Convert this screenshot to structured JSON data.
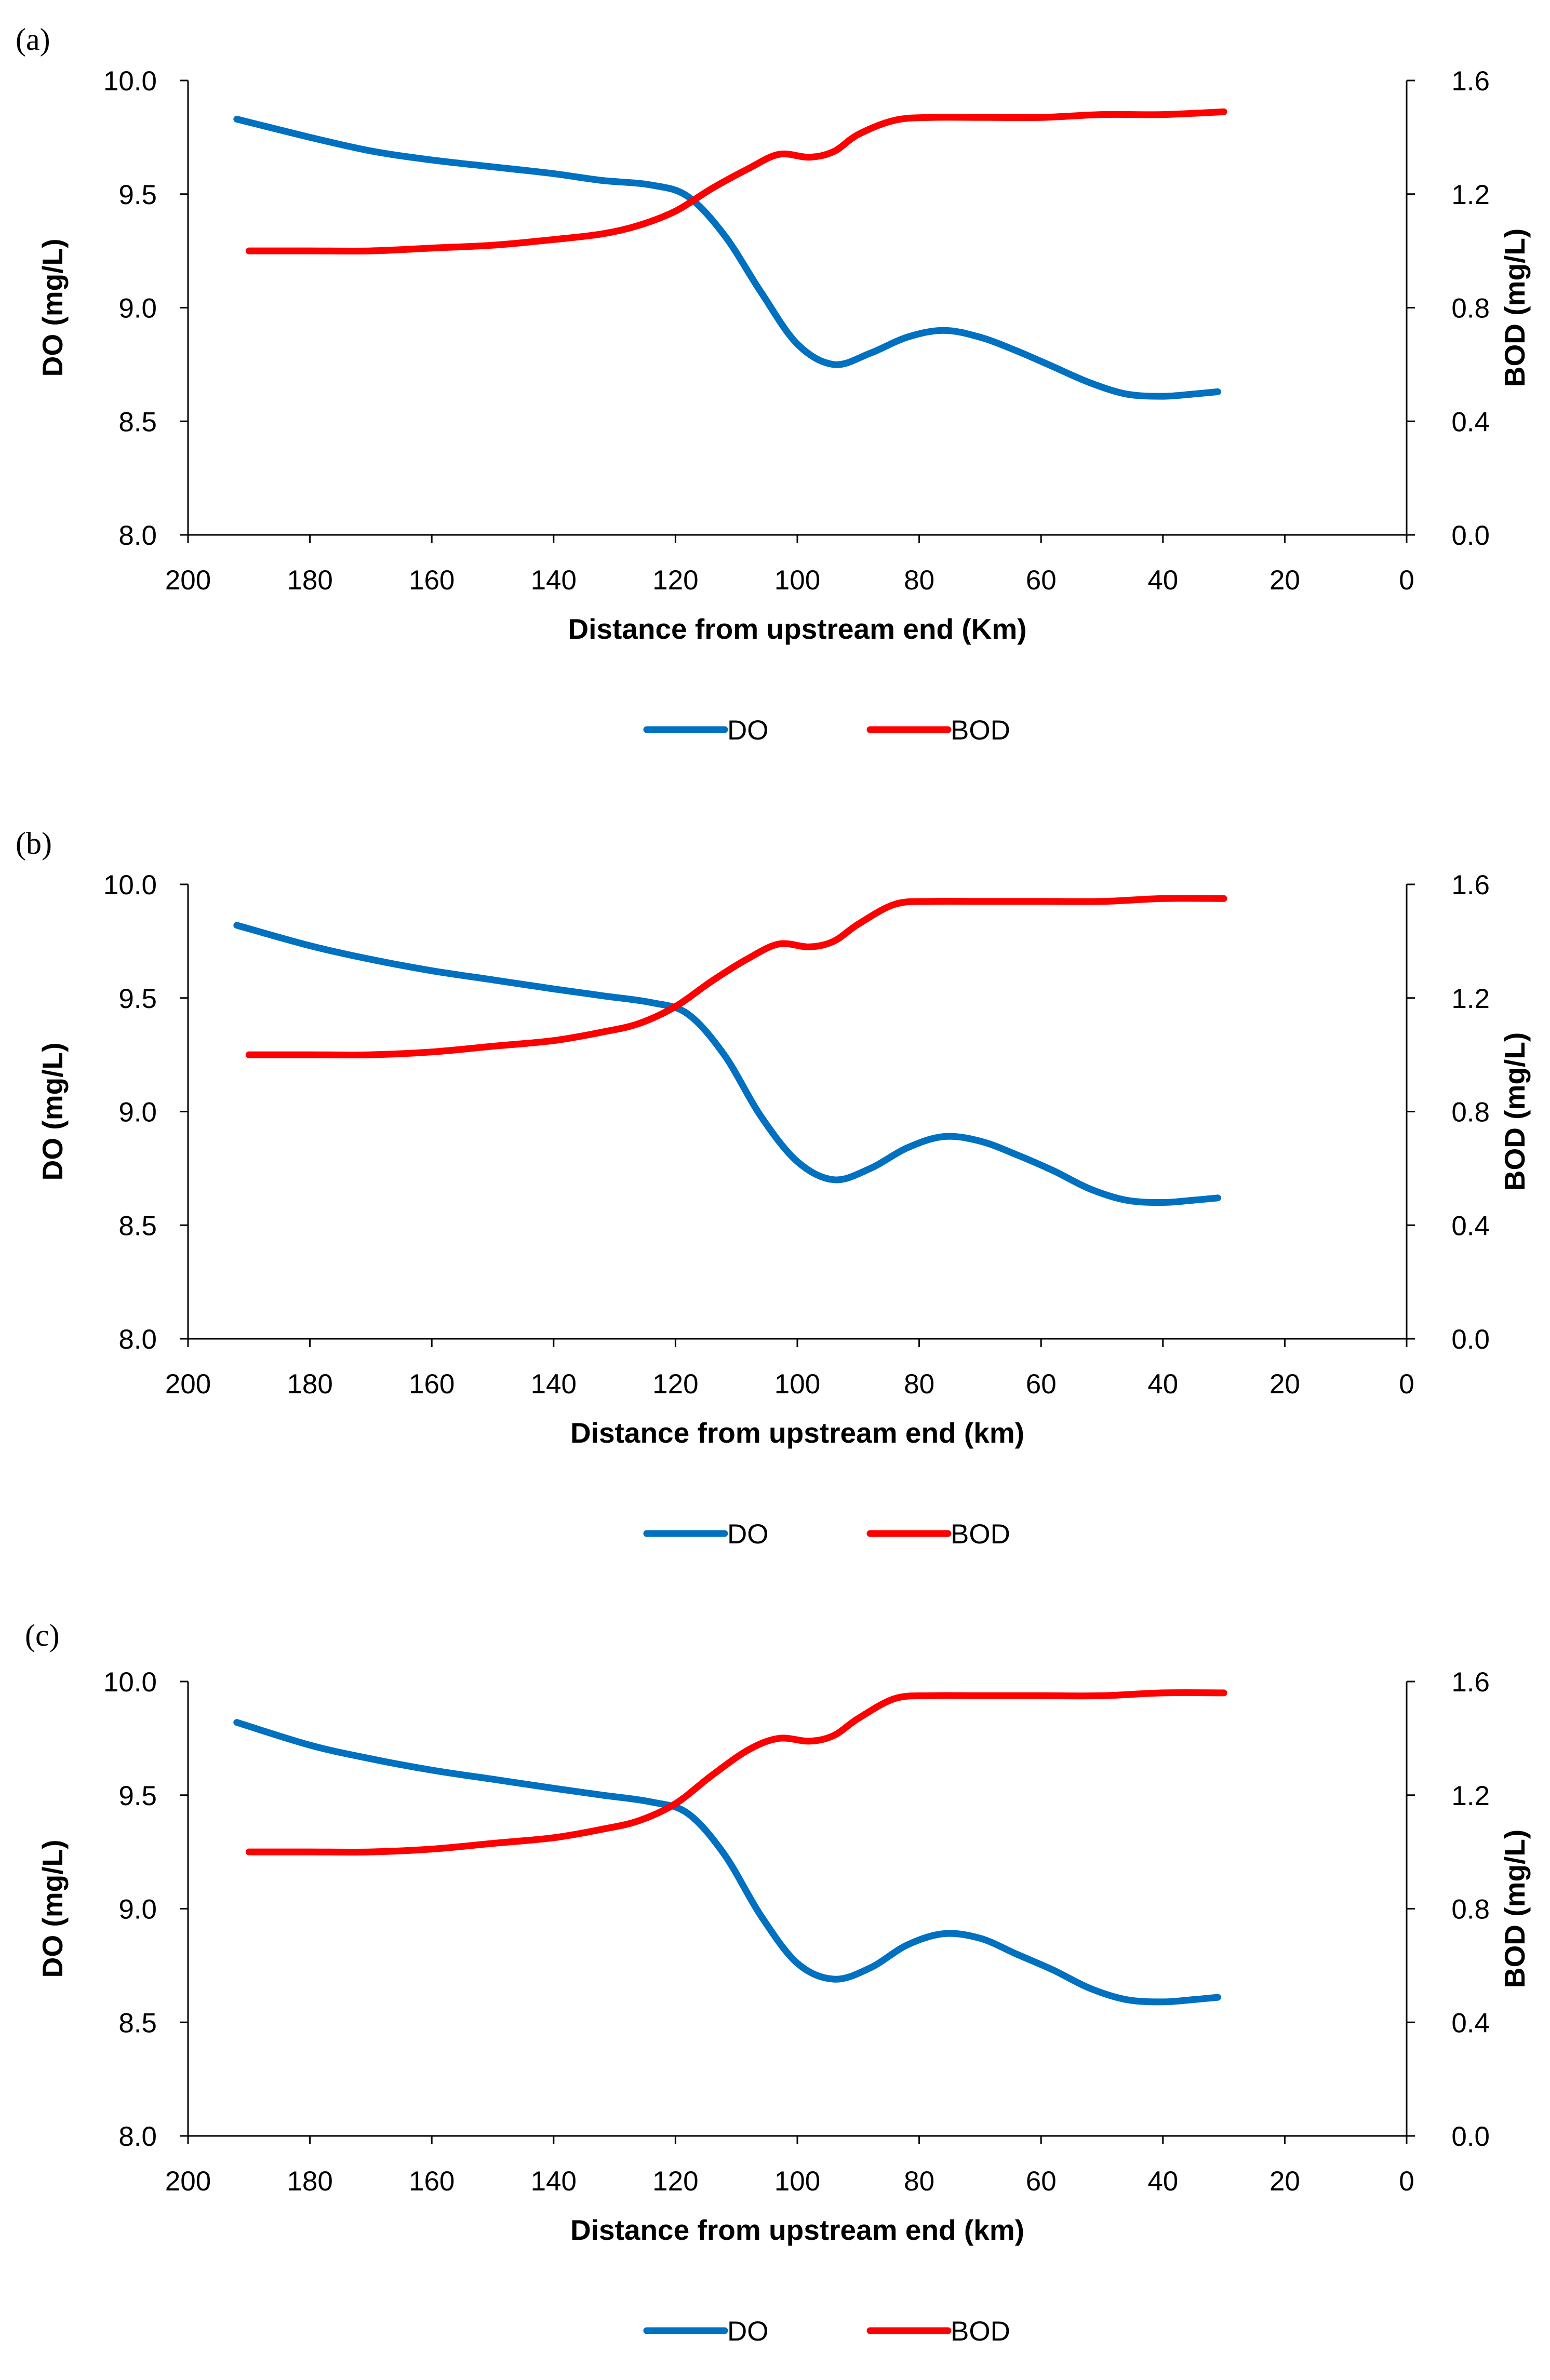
{
  "chart_data": [
    {
      "type": "line",
      "panel_label": "(a)",
      "xlabel": "Distance from upstream end (Km)",
      "ylabel": "DO (mg/L)",
      "y2label": "BOD (mg/L)",
      "xlim": [
        200,
        0
      ],
      "ylim": [
        8.0,
        10.0
      ],
      "y2lim": [
        0.0,
        1.6
      ],
      "x_ticks": [
        "200",
        "180",
        "160",
        "140",
        "120",
        "100",
        "80",
        "60",
        "40",
        "20",
        "0"
      ],
      "y_ticks": [
        "8.0",
        "8.5",
        "9.0",
        "9.5",
        "10.0"
      ],
      "y2_ticks": [
        "0.0",
        "0.4",
        "0.8",
        "1.2",
        "1.6"
      ],
      "grid": false,
      "legend": "bottom",
      "colors": {
        "DO": "#0070C0",
        "BOD": "#FF0000"
      },
      "series": [
        {
          "name": "DO",
          "axis": "left",
          "x": [
            192,
            180,
            170,
            160,
            150,
            140,
            132,
            124,
            118,
            112,
            106,
            100,
            94,
            88,
            82,
            76,
            70,
            64,
            58,
            52,
            46,
            40,
            35,
            31
          ],
          "y": [
            9.83,
            9.75,
            9.69,
            9.65,
            9.62,
            9.59,
            9.56,
            9.54,
            9.49,
            9.32,
            9.07,
            8.84,
            8.75,
            8.8,
            8.87,
            8.9,
            8.87,
            8.81,
            8.74,
            8.67,
            8.62,
            8.61,
            8.62,
            8.63
          ]
        },
        {
          "name": "BOD",
          "axis": "right",
          "x": [
            190,
            180,
            170,
            160,
            150,
            140,
            132,
            126,
            120,
            114,
            108,
            103,
            98,
            94,
            90,
            84,
            78,
            70,
            60,
            50,
            40,
            30
          ],
          "y": [
            1.0,
            1.0,
            1.0,
            1.01,
            1.02,
            1.04,
            1.06,
            1.09,
            1.14,
            1.22,
            1.29,
            1.34,
            1.33,
            1.35,
            1.41,
            1.46,
            1.47,
            1.47,
            1.47,
            1.48,
            1.48,
            1.49
          ]
        }
      ]
    },
    {
      "type": "line",
      "panel_label": "(b)",
      "xlabel": "Distance from upstream end (km)",
      "ylabel": "DO (mg/L)",
      "y2label": "BOD (mg/L)",
      "xlim": [
        200,
        0
      ],
      "ylim": [
        8.0,
        10.0
      ],
      "y2lim": [
        0.0,
        1.6
      ],
      "x_ticks": [
        "200",
        "180",
        "160",
        "140",
        "120",
        "100",
        "80",
        "60",
        "40",
        "20",
        "0"
      ],
      "y_ticks": [
        "8.0",
        "8.5",
        "9.0",
        "9.5",
        "10.0"
      ],
      "y2_ticks": [
        "0.0",
        "0.4",
        "0.8",
        "1.2",
        "1.6"
      ],
      "grid": false,
      "legend": "bottom",
      "colors": {
        "DO": "#0070C0",
        "BOD": "#FF0000"
      },
      "series": [
        {
          "name": "DO",
          "axis": "left",
          "x": [
            192,
            180,
            170,
            160,
            150,
            140,
            132,
            124,
            118,
            112,
            106,
            100,
            94,
            88,
            82,
            76,
            70,
            64,
            58,
            52,
            46,
            40,
            35,
            31
          ],
          "y": [
            9.82,
            9.73,
            9.67,
            9.62,
            9.58,
            9.54,
            9.51,
            9.48,
            9.43,
            9.25,
            8.98,
            8.78,
            8.7,
            8.75,
            8.84,
            8.89,
            8.87,
            8.81,
            8.74,
            8.66,
            8.61,
            8.6,
            8.61,
            8.62
          ]
        },
        {
          "name": "BOD",
          "axis": "right",
          "x": [
            190,
            180,
            170,
            160,
            150,
            140,
            132,
            126,
            120,
            114,
            108,
            103,
            98,
            94,
            90,
            84,
            78,
            70,
            60,
            50,
            40,
            30
          ],
          "y": [
            1.0,
            1.0,
            1.0,
            1.01,
            1.03,
            1.05,
            1.08,
            1.11,
            1.17,
            1.26,
            1.34,
            1.39,
            1.38,
            1.4,
            1.46,
            1.53,
            1.54,
            1.54,
            1.54,
            1.54,
            1.55,
            1.55
          ]
        }
      ]
    },
    {
      "type": "line",
      "panel_label": "(c)",
      "xlabel": "Distance from upstream end (km)",
      "ylabel": "DO (mg/L)",
      "y2label": "BOD (mg/L)",
      "xlim": [
        200,
        0
      ],
      "ylim": [
        8.0,
        10.0
      ],
      "y2lim": [
        0.0,
        1.6
      ],
      "x_ticks": [
        "200",
        "180",
        "160",
        "140",
        "120",
        "100",
        "80",
        "60",
        "40",
        "20",
        "0"
      ],
      "y_ticks": [
        "8.0",
        "8.5",
        "9.0",
        "9.5",
        "10.0"
      ],
      "y2_ticks": [
        "0.0",
        "0.4",
        "0.8",
        "1.2",
        "1.6"
      ],
      "grid": false,
      "legend": "bottom",
      "colors": {
        "DO": "#0070C0",
        "BOD": "#FF0000"
      },
      "series": [
        {
          "name": "DO",
          "axis": "left",
          "x": [
            192,
            180,
            170,
            160,
            150,
            140,
            132,
            124,
            118,
            112,
            106,
            100,
            94,
            88,
            82,
            76,
            70,
            64,
            58,
            52,
            46,
            40,
            35,
            31
          ],
          "y": [
            9.82,
            9.72,
            9.66,
            9.61,
            9.57,
            9.53,
            9.5,
            9.47,
            9.42,
            9.24,
            8.97,
            8.76,
            8.69,
            8.74,
            8.84,
            8.89,
            8.87,
            8.8,
            8.73,
            8.65,
            8.6,
            8.59,
            8.6,
            8.61
          ]
        },
        {
          "name": "BOD",
          "axis": "right",
          "x": [
            190,
            180,
            170,
            160,
            150,
            140,
            132,
            126,
            120,
            114,
            108,
            103,
            98,
            94,
            90,
            84,
            78,
            70,
            60,
            50,
            40,
            30
          ],
          "y": [
            1.0,
            1.0,
            1.0,
            1.01,
            1.03,
            1.05,
            1.08,
            1.11,
            1.17,
            1.27,
            1.36,
            1.4,
            1.39,
            1.41,
            1.47,
            1.54,
            1.55,
            1.55,
            1.55,
            1.55,
            1.56,
            1.56
          ]
        }
      ]
    }
  ]
}
